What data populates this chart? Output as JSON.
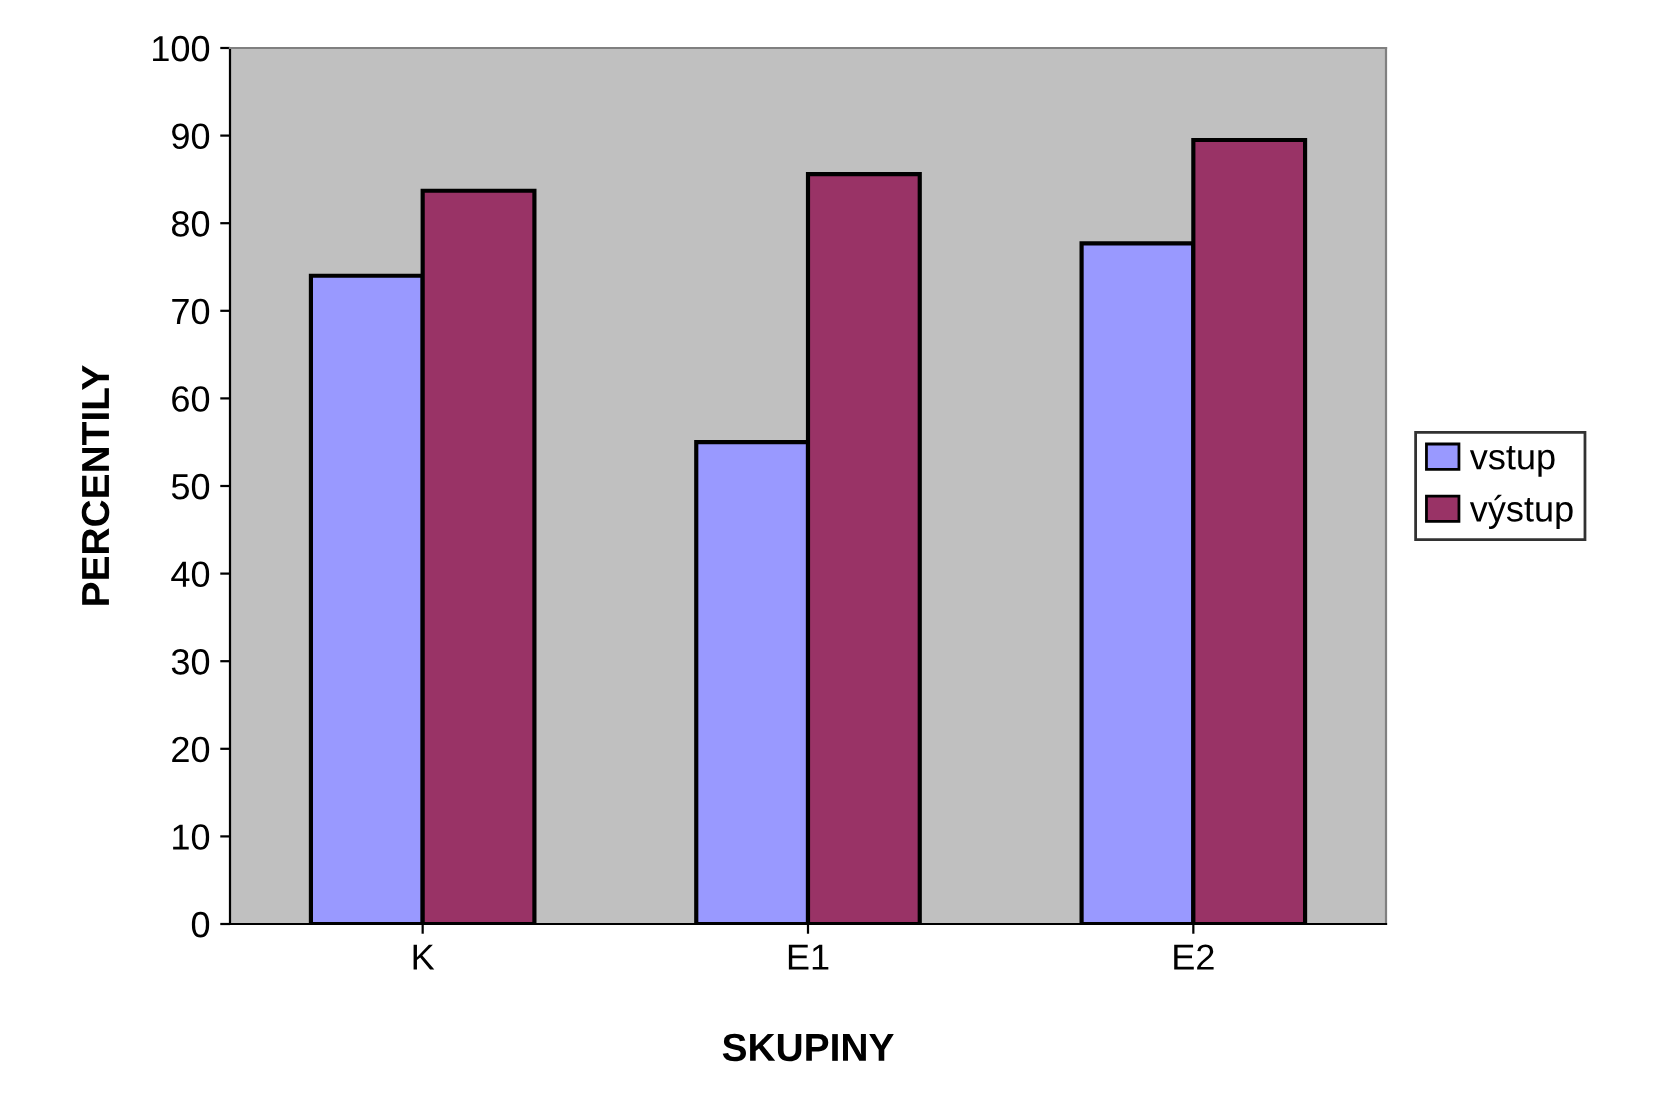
{
  "chart_data": {
    "type": "bar",
    "xlabel": "SKUPINY",
    "ylabel": "PERCENTILY",
    "categories": [
      "K",
      "E1",
      "E2"
    ],
    "series": [
      {
        "name": "vstup",
        "color": "#9999ff",
        "values": [
          74,
          55,
          77.7
        ]
      },
      {
        "name": "výstup",
        "color": "#993366",
        "values": [
          83.7,
          85.6,
          89.5
        ]
      }
    ],
    "ylim": [
      0,
      100
    ],
    "yticks": [
      0,
      10,
      20,
      30,
      40,
      50,
      60,
      70,
      80,
      90,
      100
    ],
    "grid": false,
    "legend": "right"
  }
}
